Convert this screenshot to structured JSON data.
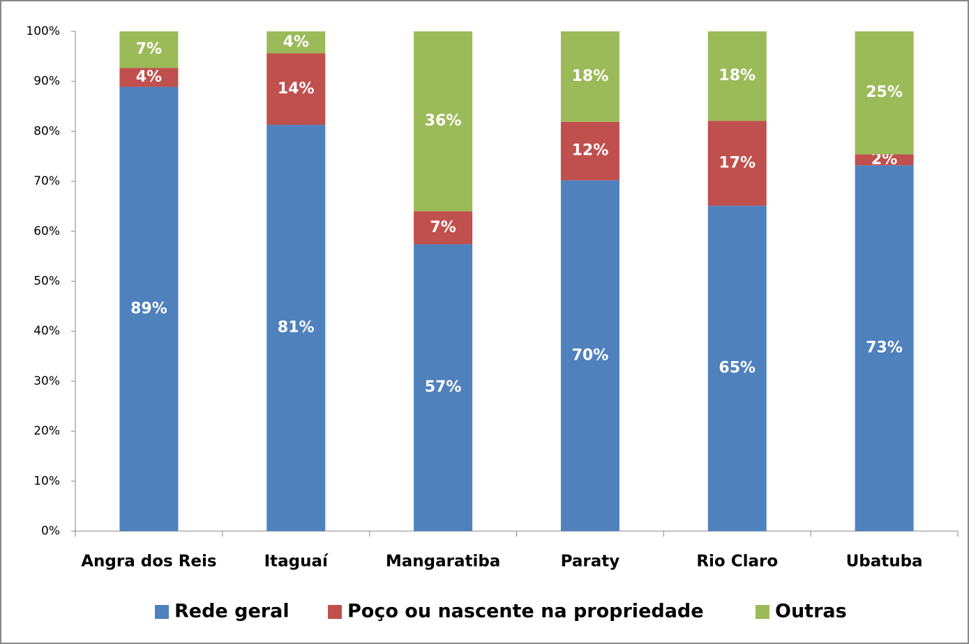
{
  "chart_data": {
    "type": "stacked_bar",
    "categories": [
      "Angra dos Reis",
      "Itaguaí",
      "Mangaratiba",
      "Paraty",
      "Rio Claro",
      "Ubatuba"
    ],
    "series": [
      {
        "name": "Rede geral",
        "color": "#4f81bd",
        "values": [
          88.9,
          81.3,
          57.4,
          70.2,
          65.1,
          73.2
        ],
        "value_labels": [
          "89%",
          "81%",
          "57%",
          "70%",
          "65%",
          "73%"
        ]
      },
      {
        "name": "Poço ou nascente na propriedade",
        "color": "#c0504d",
        "values": [
          3.8,
          14.3,
          6.6,
          11.7,
          17.0,
          2.2
        ],
        "value_labels": [
          "4%",
          "14%",
          "7%",
          "12%",
          "17%",
          "2%"
        ]
      },
      {
        "name": "Outras",
        "color": "#9bbb59",
        "values": [
          7.3,
          4.4,
          36.0,
          18.1,
          17.9,
          24.6
        ],
        "value_labels": [
          "7%",
          "4%",
          "36%",
          "18%",
          "18%",
          "25%"
        ]
      }
    ],
    "ylim": [
      0,
      100
    ],
    "yticks": [
      {
        "value": 0,
        "label": "0%"
      },
      {
        "value": 10,
        "label": "10%"
      },
      {
        "value": 20,
        "label": "20%"
      },
      {
        "value": 30,
        "label": "30%"
      },
      {
        "value": 40,
        "label": "40%"
      },
      {
        "value": 50,
        "label": "50%"
      },
      {
        "value": 60,
        "label": "60%"
      },
      {
        "value": 70,
        "label": "70%"
      },
      {
        "value": 80,
        "label": "80%"
      },
      {
        "value": 90,
        "label": "90%"
      },
      {
        "value": 100,
        "label": "100%"
      }
    ],
    "legend": "bottom"
  }
}
